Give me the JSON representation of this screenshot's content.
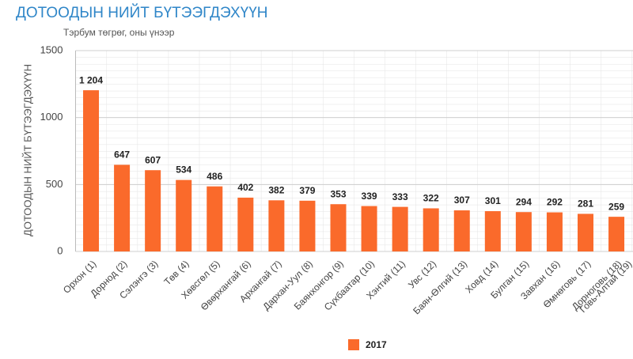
{
  "chart_data": {
    "type": "bar",
    "title": "ДОТООДЫН НИЙТ БҮТЭЭГДЭХҮҮН",
    "subtitle": "Тэрбум төгрөг, оны үнээр",
    "y_label": "ДОТООДЫН НИЙТ БҮТЭЭГДЭХҮҮН",
    "categories": [
      "Орхон (1)",
      "Дорнод (2)",
      "Сэлэнгэ (3)",
      "Төв (4)",
      "Хөвсгөл (5)",
      "Өвөрхангай (6)",
      "Архангай (7)",
      "Дархан-Уул (8)",
      "Баянхонгор (9)",
      "Сүхбаатар (10)",
      "Хэнтий (11)",
      "Увс (12)",
      "Баян-Өлгий (13)",
      "Ховд (14)",
      "Булган (15)",
      "Завхан (16)",
      "Өмнөговь (17)",
      "Дорноговь (18)",
      "Говь-Алтай (19)"
    ],
    "series": [
      {
        "name": "2017",
        "color": "#fa6a2b",
        "values": [
          1204,
          647,
          607,
          534,
          486,
          402,
          382,
          379,
          353,
          339,
          333,
          322,
          307,
          301,
          294,
          292,
          281,
          259,
          null
        ],
        "value_labels": [
          "1 204",
          "647",
          "607",
          "534",
          "486",
          "402",
          "382",
          "379",
          "353",
          "339",
          "333",
          "322",
          "307",
          "301",
          "294",
          "292",
          "281",
          "259",
          null
        ]
      }
    ],
    "ylim": [
      0,
      1500
    ],
    "yticks": [
      0,
      500,
      1000,
      1500
    ],
    "grid": true,
    "legend": "bottom"
  }
}
